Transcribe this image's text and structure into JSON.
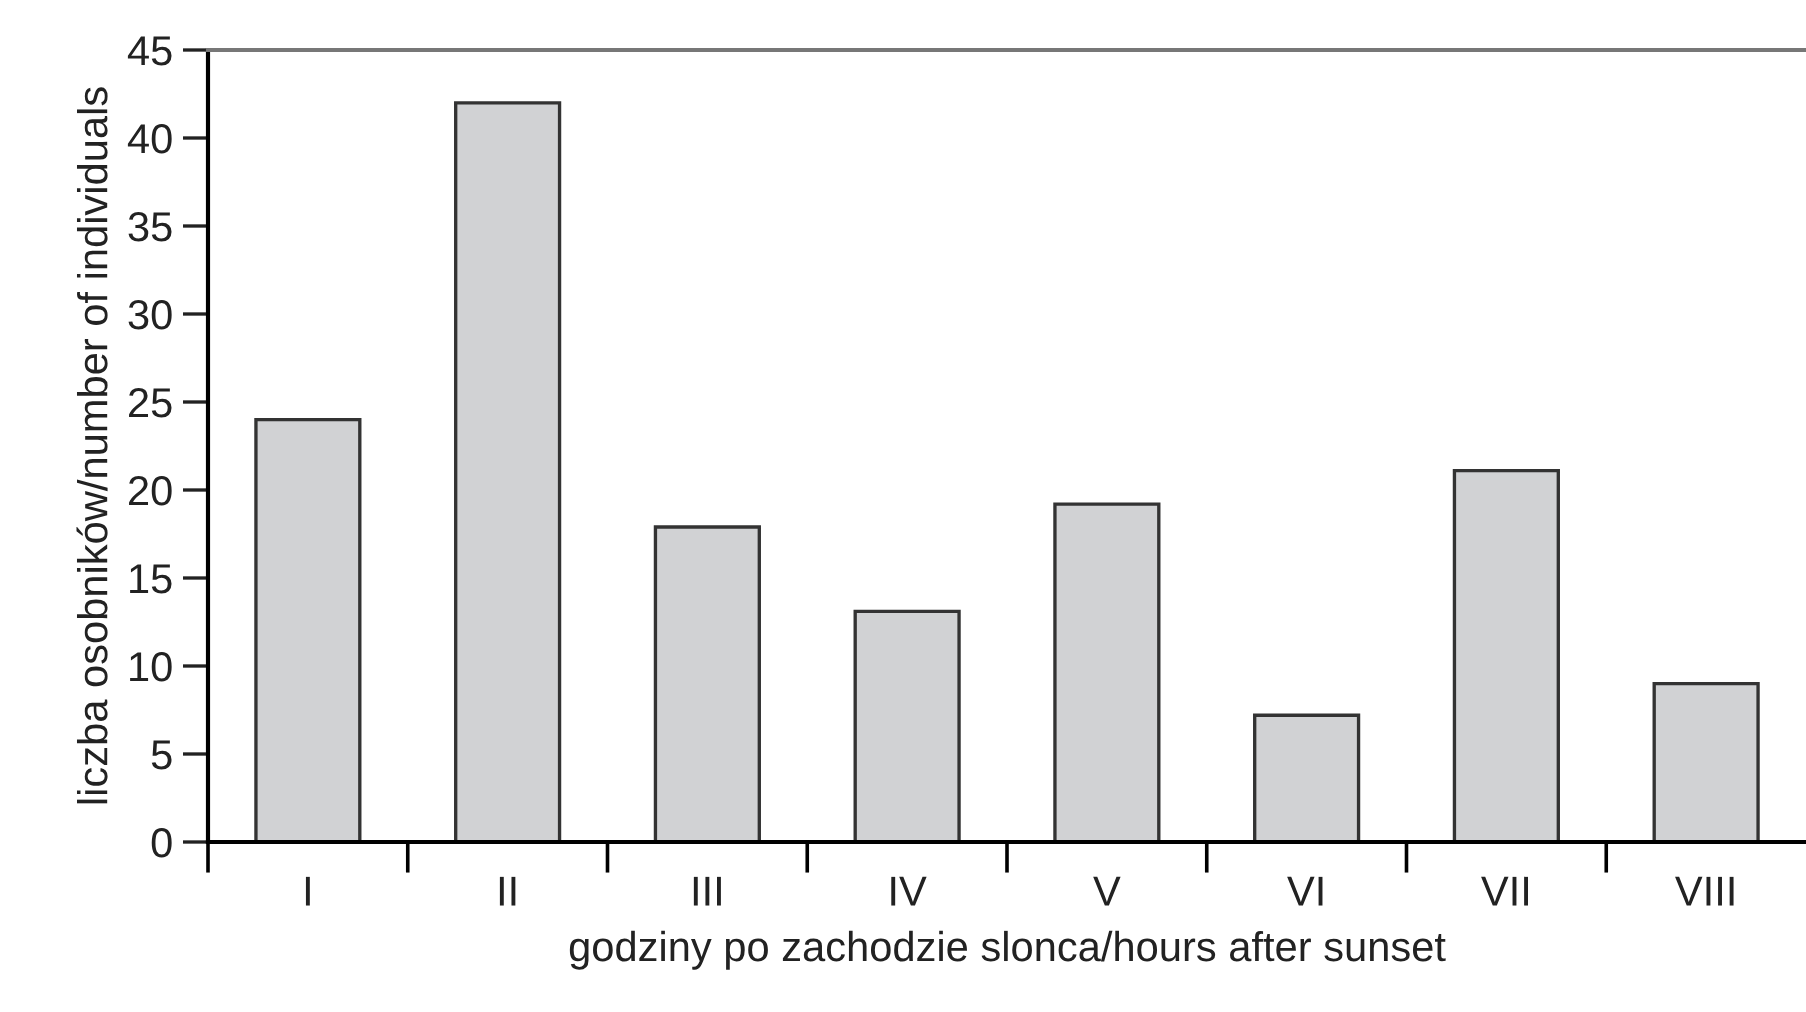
{
  "chart_data": {
    "type": "bar",
    "xlabel": "godziny po zachodzie slonca/hours after sunset",
    "ylabel": "liczba osobników/number of individuals",
    "categories": [
      "I",
      "II",
      "III",
      "IV",
      "V",
      "VI",
      "VII",
      "VIII"
    ],
    "values": [
      24,
      42,
      17.9,
      13.1,
      19.2,
      7.2,
      21.1,
      9
    ],
    "color": "#d1d2d4",
    "ylim": [
      0,
      45
    ],
    "yticks": [
      0,
      5,
      10,
      15,
      20,
      25,
      30,
      35,
      40,
      45
    ],
    "grid": false
  }
}
